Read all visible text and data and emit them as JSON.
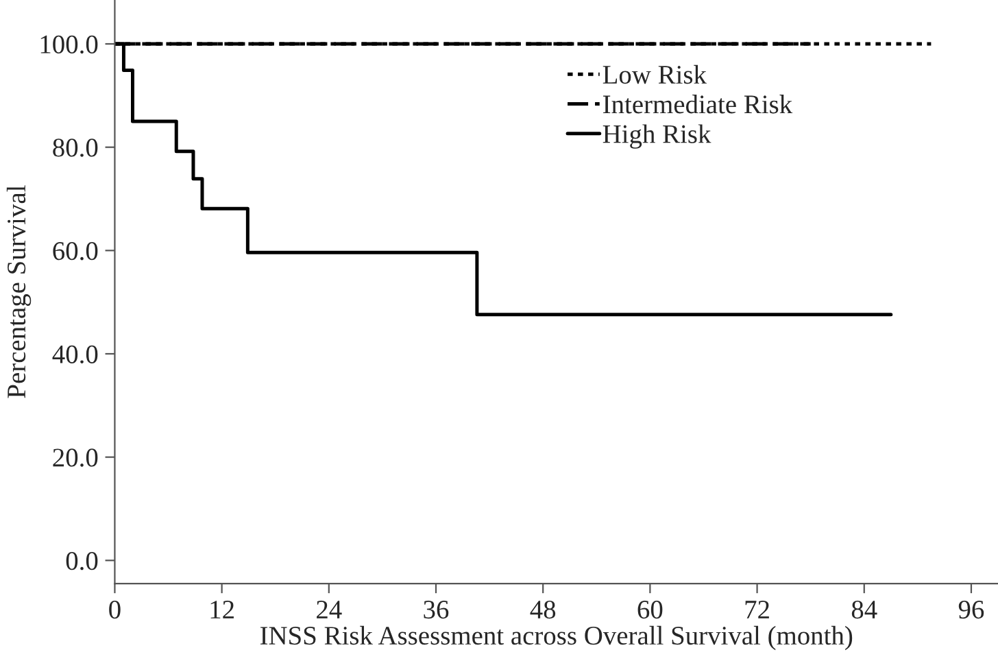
{
  "chart_data": {
    "type": "step",
    "xlabel": "INSS Risk Assessment across Overall Survival (month)",
    "ylabel": "Percentage Survival",
    "xlim": [
      0,
      99
    ],
    "ylim": [
      -4.5,
      108.5
    ],
    "xticks": [
      0,
      12,
      24,
      36,
      48,
      60,
      72,
      84,
      96
    ],
    "yticks": [
      {
        "value": 0,
        "label": "0.0"
      },
      {
        "value": 20,
        "label": "20.0"
      },
      {
        "value": 40,
        "label": "40.0"
      },
      {
        "value": 60,
        "label": "60.0"
      },
      {
        "value": 80,
        "label": "80.0"
      },
      {
        "value": 100,
        "label": "100.0"
      }
    ],
    "grid": false,
    "legend": "top",
    "marker": "none",
    "series": [
      {
        "name": "Low Risk",
        "color": "#000000",
        "line_style": "dotted",
        "x": [
          0,
          91.5
        ],
        "values": [
          100,
          100
        ]
      },
      {
        "name": "Intermediate Risk",
        "color": "#000000",
        "line_style": "dashed",
        "x": [
          0,
          78
        ],
        "values": [
          100,
          100
        ]
      },
      {
        "name": "High Risk",
        "color": "#000000",
        "line_style": "solid",
        "x": [
          0,
          1,
          2,
          6.9,
          8.8,
          9.8,
          14.9,
          40.6,
          87
        ],
        "values": [
          100,
          94.9,
          85.0,
          79.2,
          73.9,
          68.1,
          59.6,
          47.6,
          47.6
        ]
      }
    ]
  }
}
